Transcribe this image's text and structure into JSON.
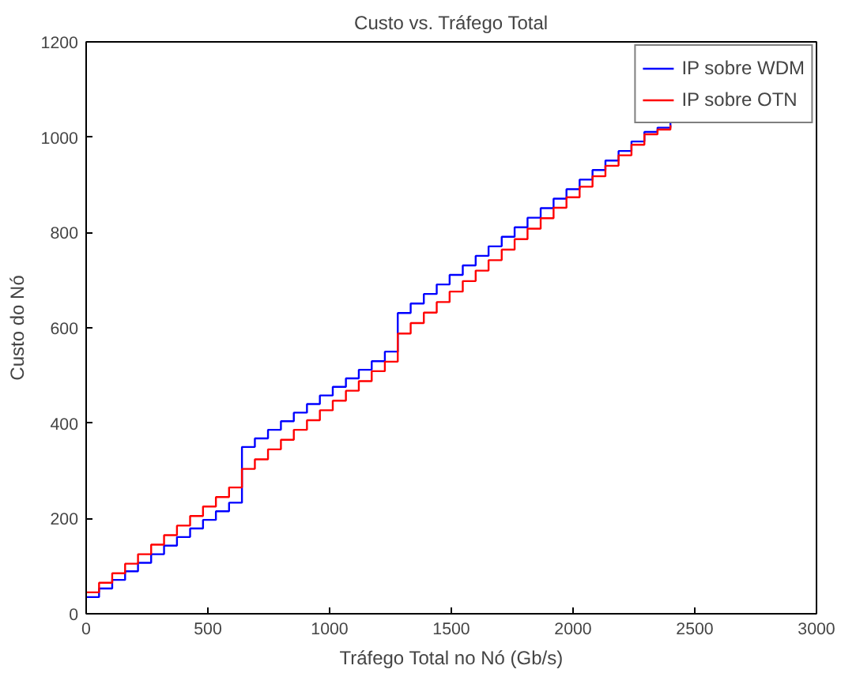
{
  "chart_data": {
    "type": "step",
    "title": "Custo vs. Tráfego Total",
    "xlabel": "Tráfego Total no Nó (Gb/s)",
    "ylabel": "Custo do Nó",
    "x": [
      0,
      53,
      107,
      160,
      213,
      267,
      320,
      373,
      427,
      480,
      533,
      587,
      640,
      693,
      747,
      800,
      853,
      907,
      960,
      1013,
      1067,
      1120,
      1173,
      1227,
      1280,
      1333,
      1387,
      1440,
      1493,
      1547,
      1600,
      1653,
      1707,
      1760,
      1813,
      1867,
      1920,
      1973,
      2027,
      2080,
      2133,
      2187,
      2240,
      2293,
      2347,
      2400
    ],
    "series": [
      {
        "name": "IP sobre WDM",
        "color": "#0000ff",
        "values": [
          35,
          53,
          71,
          89,
          107,
          125,
          143,
          161,
          179,
          197,
          215,
          233,
          350,
          368,
          386,
          404,
          422,
          440,
          458,
          476,
          494,
          512,
          530,
          550,
          631,
          651,
          671,
          691,
          711,
          731,
          751,
          771,
          791,
          811,
          831,
          851,
          871,
          891,
          911,
          931,
          951,
          971,
          991,
          1011,
          1020,
          1030
        ]
      },
      {
        "name": "IP sobre OTN",
        "color": "#ff0000",
        "values": [
          45,
          65,
          85,
          105,
          125,
          145,
          165,
          185,
          205,
          225,
          245,
          265,
          304,
          324,
          345,
          365,
          386,
          406,
          427,
          447,
          468,
          488,
          509,
          529,
          588,
          610,
          632,
          654,
          676,
          698,
          720,
          742,
          764,
          786,
          808,
          830,
          852,
          874,
          896,
          918,
          940,
          962,
          984,
          1006,
          1016,
          1025
        ]
      }
    ],
    "xlim": [
      0,
      3000
    ],
    "ylim": [
      0,
      1200
    ],
    "xticks": [
      0,
      500,
      1000,
      1500,
      2000,
      2500,
      3000
    ],
    "yticks": [
      0,
      200,
      400,
      600,
      800,
      1000,
      1200
    ],
    "legend": "top right",
    "grid": false
  }
}
